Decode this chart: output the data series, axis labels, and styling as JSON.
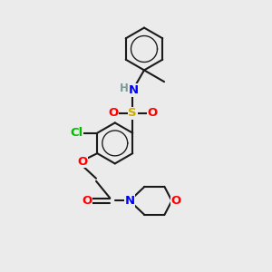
{
  "bg_color": "#ebebeb",
  "bond_color": "#1a1a1a",
  "bond_width": 1.5,
  "atom_colors": {
    "N": "#0000ff",
    "O": "#ff0000",
    "S": "#ccaa00",
    "Cl": "#00bb00",
    "H": "#7a9a9a",
    "C": "#1a1a1a"
  },
  "font_size_atom": 9.5,
  "font_size_small": 8.5
}
